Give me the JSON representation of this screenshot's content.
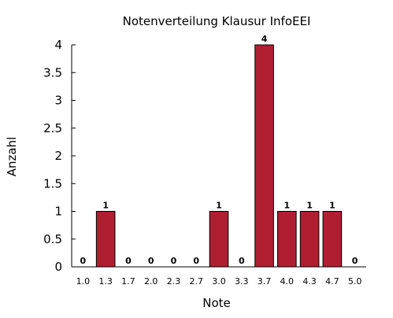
{
  "chart_data": {
    "type": "bar",
    "title": "Notenverteilung Klausur InfoEEI",
    "xlabel": "Note",
    "ylabel": "Anzahl",
    "categories": [
      "1.0",
      "1.3",
      "1.7",
      "2.0",
      "2.3",
      "2.7",
      "3.0",
      "3.3",
      "3.7",
      "4.0",
      "4.3",
      "4.7",
      "5.0"
    ],
    "values": [
      0,
      1,
      0,
      0,
      0,
      0,
      1,
      0,
      4,
      1,
      1,
      1,
      0
    ],
    "data_labels": [
      "0",
      "1",
      "0",
      "0",
      "0",
      "0",
      "1",
      "0",
      "4",
      "1",
      "1",
      "1",
      "0"
    ],
    "ylim": [
      0,
      4
    ],
    "yticks": [
      "0",
      "0.5",
      "1",
      "1.5",
      "2",
      "2.5",
      "3",
      "3.5",
      "4"
    ],
    "grid": false,
    "bar_color": "#b01e32",
    "bar_edge_color": "#000000"
  }
}
